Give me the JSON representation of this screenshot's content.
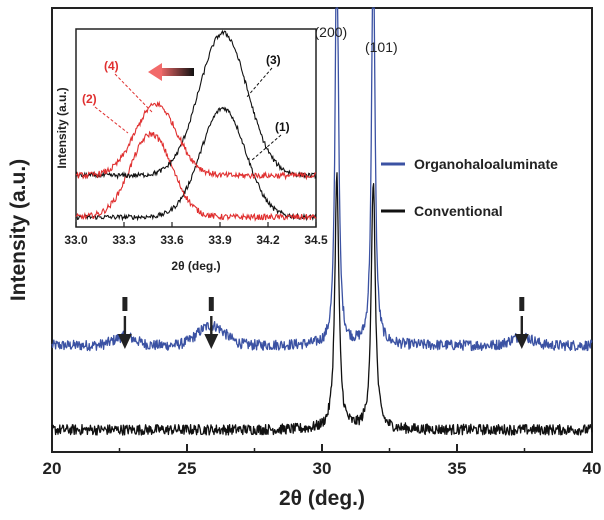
{
  "chart_data": [
    {
      "type": "line",
      "xlabel": "2θ (deg.)",
      "ylabel": "Intensity (a.u.)",
      "xlim": [
        20,
        40
      ],
      "xticks": [
        "20",
        "25",
        "30",
        "35",
        "40"
      ],
      "peak_labels": [
        {
          "text": "(200)",
          "x": 30.55
        },
        {
          "text": "(101)",
          "x": 31.9
        }
      ],
      "impurity_markers_x": [
        22.7,
        25.9,
        37.4
      ],
      "legend_position": "right-middle",
      "series": [
        {
          "name": "Organohaloaluminate",
          "color": "#3b52a3",
          "baseline": 0.24,
          "noise": 0.012,
          "bumps": [
            [
              22.7,
              0.02,
              0.4
            ],
            [
              25.9,
              0.045,
              0.5
            ],
            [
              37.4,
              0.02,
              0.4
            ]
          ],
          "peaks": [
            [
              30.55,
              1.0,
              0.07
            ],
            [
              31.9,
              0.99,
              0.07
            ]
          ]
        },
        {
          "name": "Conventional",
          "color": "#111111",
          "baseline": 0.05,
          "noise": 0.012,
          "bumps": [],
          "peaks": [
            [
              30.55,
              0.57,
              0.09
            ],
            [
              31.9,
              0.56,
              0.09
            ]
          ]
        }
      ]
    },
    {
      "type": "line",
      "xlabel": "2θ (deg.)",
      "ylabel": "Intensity (a.u.)",
      "xlim": [
        33.0,
        34.5
      ],
      "xticks": [
        "33.0",
        "33.3",
        "33.6",
        "33.9",
        "34.2",
        "34.5"
      ],
      "shift_arrow": "toward lower 2θ",
      "series": [
        {
          "name": "(1)",
          "color": "#111111",
          "baseline": 0.05,
          "peak_x": 33.92,
          "height": 0.55,
          "width": 0.14,
          "noise": 0.012
        },
        {
          "name": "(2)",
          "color": "#e03030",
          "baseline": 0.05,
          "peak_x": 33.47,
          "height": 0.42,
          "width": 0.13,
          "noise": 0.015
        },
        {
          "name": "(3)",
          "color": "#111111",
          "baseline": 0.26,
          "peak_x": 33.92,
          "height": 0.72,
          "width": 0.15,
          "noise": 0.012
        },
        {
          "name": "(4)",
          "color": "#e03030",
          "baseline": 0.26,
          "peak_x": 33.5,
          "height": 0.36,
          "width": 0.13,
          "noise": 0.015
        }
      ]
    }
  ]
}
